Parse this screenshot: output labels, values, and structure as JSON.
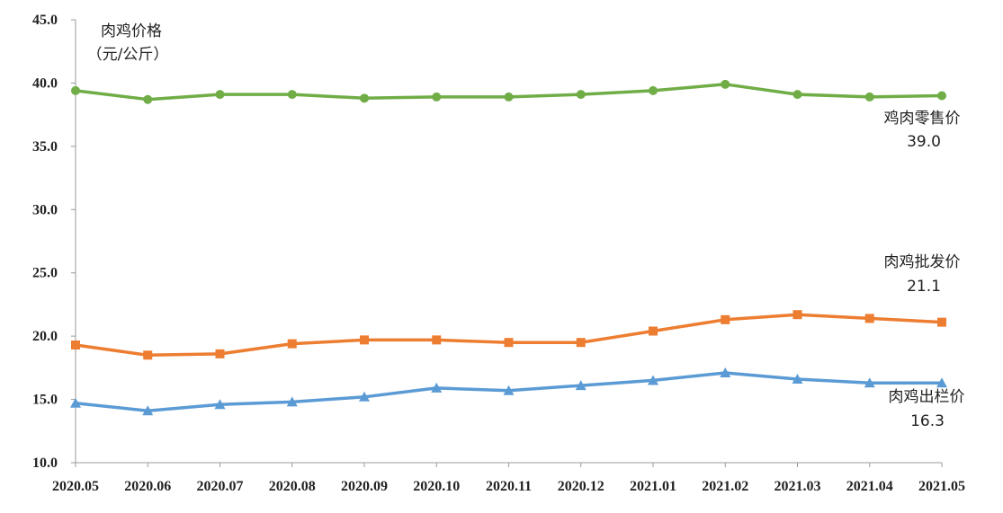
{
  "chart_data": {
    "type": "line",
    "ylabel_line1": "肉鸡价格",
    "ylabel_line2": "（元/公斤）",
    "categories": [
      "2020.05",
      "2020.06",
      "2020.07",
      "2020.08",
      "2020.09",
      "2020.10",
      "2020.11",
      "2020.12",
      "2021.01",
      "2021.02",
      "2021.03",
      "2021.04",
      "2021.05"
    ],
    "y_ticks": [
      "10.0",
      "15.0",
      "20.0",
      "25.0",
      "30.0",
      "35.0",
      "40.0",
      "45.0"
    ],
    "ylim": [
      10,
      45
    ],
    "grid": false,
    "series": [
      {
        "name": "鸡肉零售价",
        "end_label": "39.0",
        "color": "#70ad47",
        "marker": "circle",
        "values": [
          39.4,
          38.7,
          39.1,
          39.1,
          38.8,
          38.9,
          38.9,
          39.1,
          39.4,
          39.9,
          39.1,
          38.9,
          39.0
        ]
      },
      {
        "name": "肉鸡批发价",
        "end_label": "21.1",
        "color": "#ed7d31",
        "marker": "square",
        "values": [
          19.3,
          18.5,
          18.6,
          19.4,
          19.7,
          19.7,
          19.5,
          19.5,
          20.4,
          21.3,
          21.7,
          21.4,
          21.1
        ]
      },
      {
        "name": "肉鸡出栏价",
        "end_label": "16.3",
        "color": "#5b9bd5",
        "marker": "triangle",
        "values": [
          14.7,
          14.1,
          14.6,
          14.8,
          15.2,
          15.9,
          15.7,
          16.1,
          16.5,
          17.1,
          16.6,
          16.3,
          16.3
        ]
      }
    ]
  }
}
